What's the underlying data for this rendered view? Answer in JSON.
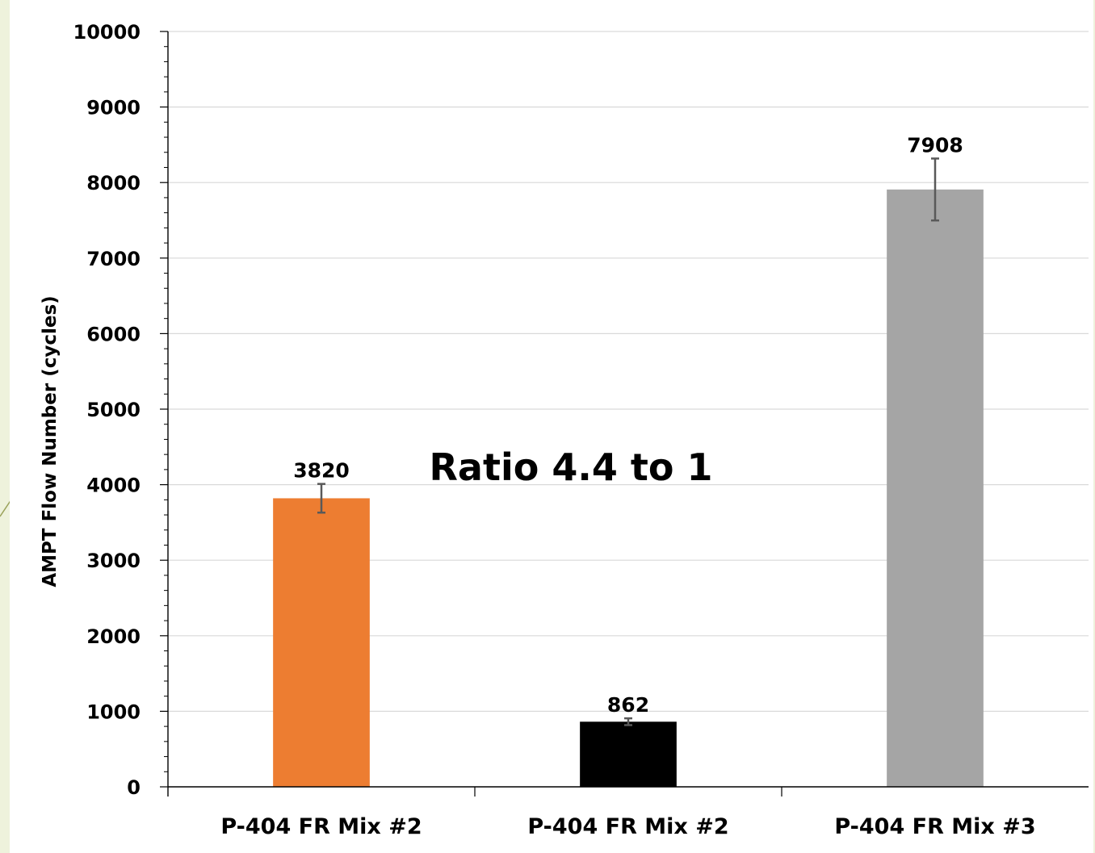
{
  "slide": {
    "background_color": "#eef2dc",
    "accent_line_color": "#9aa25a"
  },
  "chart_data": {
    "type": "bar",
    "title": "",
    "xlabel": "",
    "ylabel": "AMPT Flow Number (cycles)",
    "ylim": [
      0,
      10000
    ],
    "ytick_step": 1000,
    "ytick_minor_step": 200,
    "grid": true,
    "categories": [
      "P-404 FR Mix #2",
      "P-404 FR Mix #2",
      "P-404 FR Mix #3"
    ],
    "values": [
      3820,
      862,
      7908
    ],
    "error": [
      190,
      45,
      410
    ],
    "value_labels": [
      "3820",
      "862",
      "7908"
    ],
    "bar_colors": [
      "#ed7d31",
      "#000000",
      "#a5a5a5"
    ],
    "annotation": "Ratio 4.4 to 1"
  }
}
